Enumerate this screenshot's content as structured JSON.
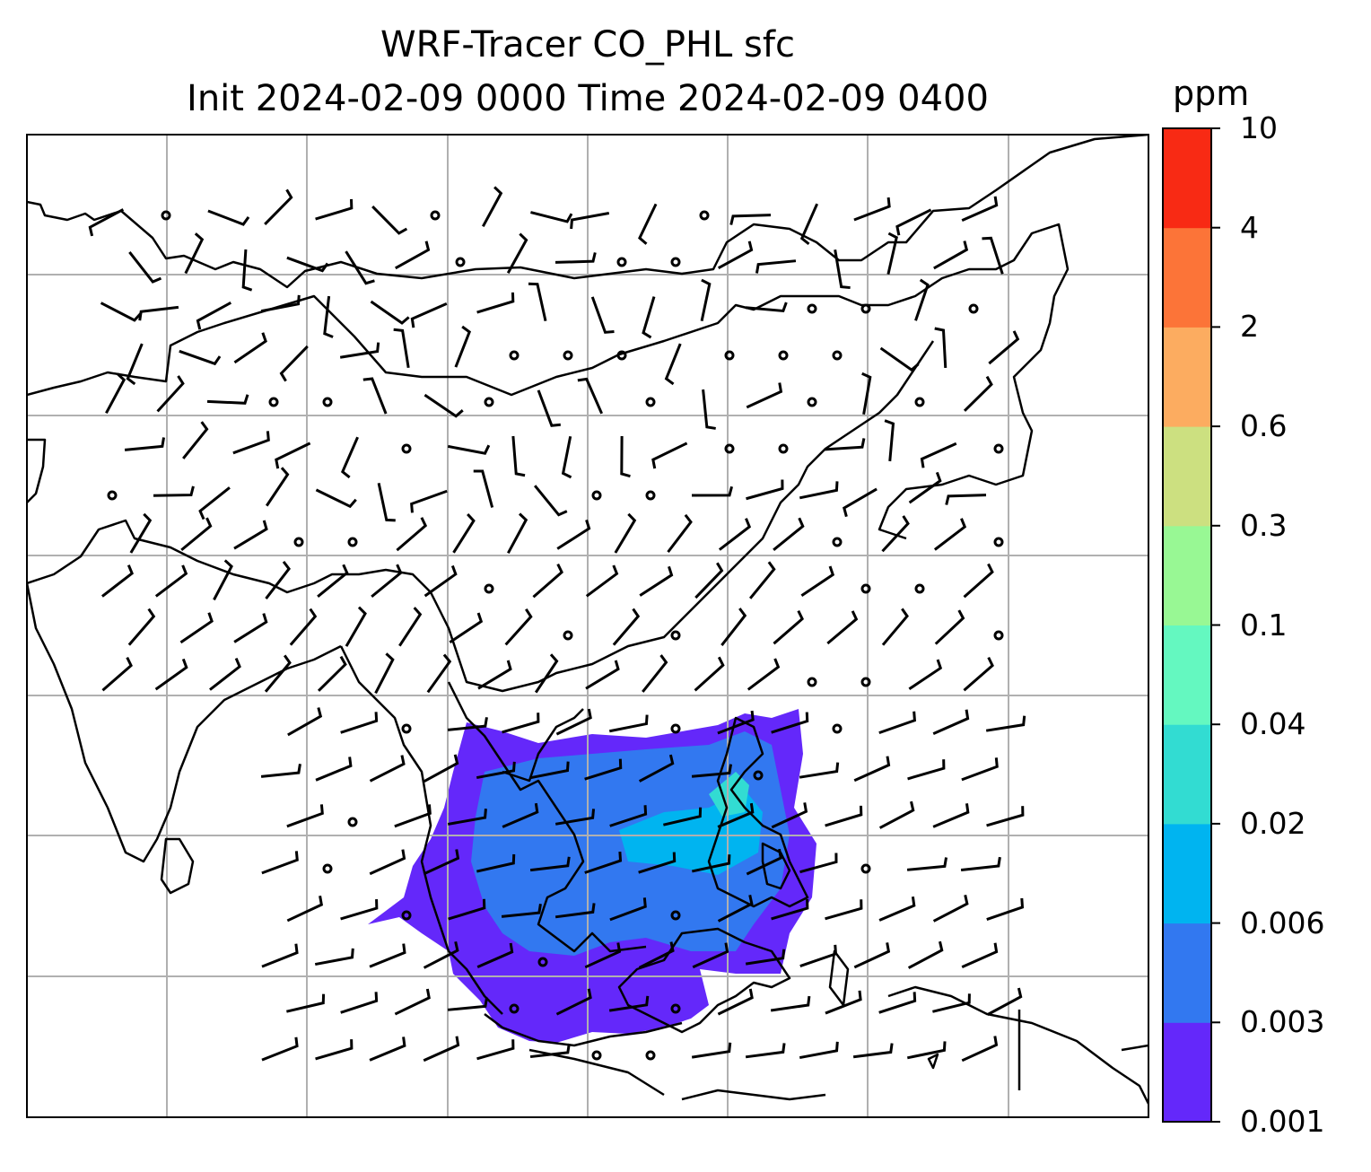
{
  "title": {
    "line1": "WRF-Tracer CO_PHL sfc",
    "line2": "Init 2024-02-09 0000 Time 2024-02-09 0400"
  },
  "colorbar": {
    "unit": "ppm",
    "ticks": [
      "0.001",
      "0.003",
      "0.006",
      "0.02",
      "0.04",
      "0.1",
      "0.3",
      "0.6",
      "2",
      "4",
      "10"
    ],
    "colors": [
      "#6428fa",
      "#3278f0",
      "#00b4f0",
      "#32dcd2",
      "#64f8c0",
      "#98f894",
      "#cce080",
      "#fcac60",
      "#fc7438",
      "#f82a14"
    ]
  },
  "map": {
    "region": "South and East Asia",
    "gridlines": true,
    "tracer_source": "Philippines"
  }
}
